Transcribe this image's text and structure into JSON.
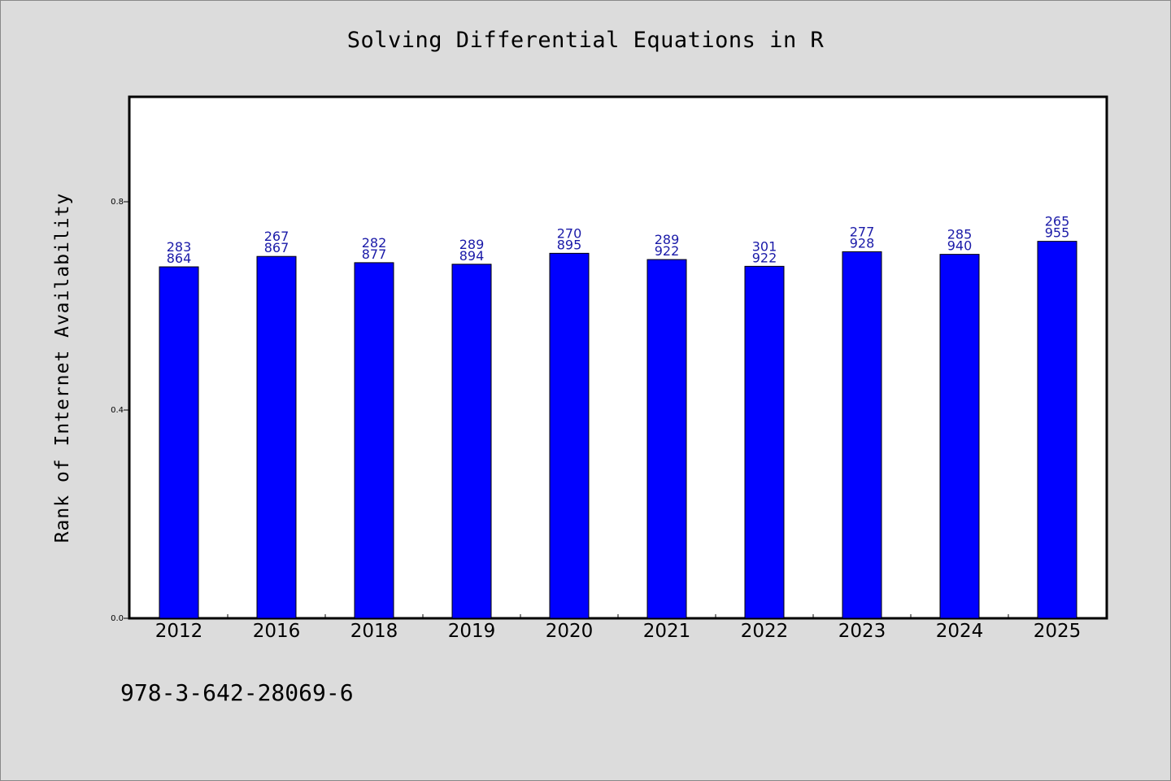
{
  "chart_data": {
    "type": "bar",
    "title": "Solving Differential Equations in R",
    "xlabel": "",
    "ylabel": "Rank of Internet Availability",
    "categories": [
      "2012",
      "2016",
      "2018",
      "2019",
      "2020",
      "2021",
      "2022",
      "2023",
      "2024",
      "2025"
    ],
    "values": [
      0.675,
      0.695,
      0.683,
      0.68,
      0.701,
      0.689,
      0.676,
      0.704,
      0.699,
      0.724
    ],
    "data_labels": [
      [
        "283",
        "864"
      ],
      [
        "267",
        "867"
      ],
      [
        "282",
        "877"
      ],
      [
        "289",
        "894"
      ],
      [
        "270",
        "895"
      ],
      [
        "289",
        "922"
      ],
      [
        "301",
        "922"
      ],
      [
        "277",
        "928"
      ],
      [
        "285",
        "940"
      ],
      [
        "265",
        "955"
      ]
    ],
    "y_ticks": [
      {
        "value": 0.0,
        "label": "0.0"
      },
      {
        "value": 0.4,
        "label": "0.4"
      },
      {
        "value": 0.8,
        "label": "0.8"
      }
    ],
    "ylim": [
      0,
      1.0
    ],
    "grid": false,
    "bar_color": "#0000ff",
    "label_color": "#1a1aa8"
  },
  "footer": {
    "code": "978-3-642-28069-6"
  }
}
